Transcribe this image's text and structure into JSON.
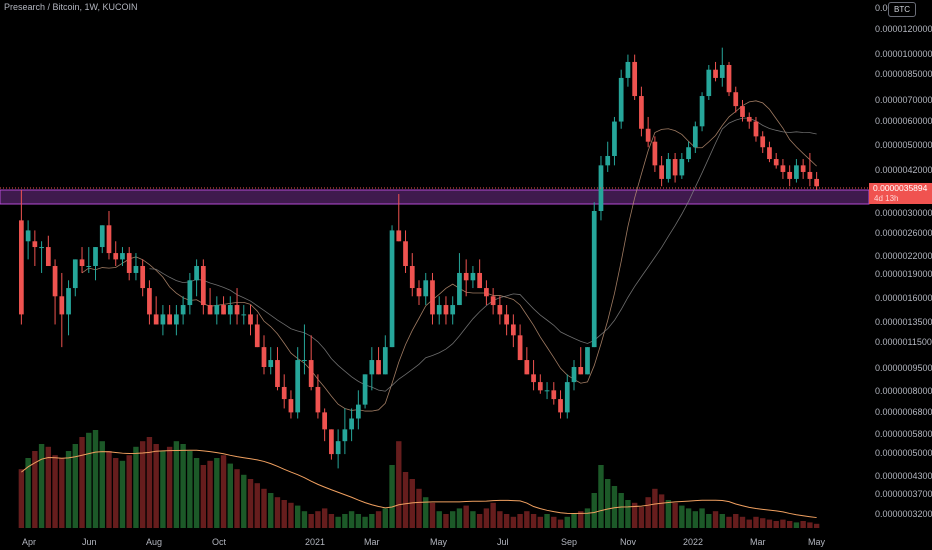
{
  "header": {
    "symbol_title": "Presearch / Bitcoin, 1W, KUCOIN",
    "currency_badge": "BTC"
  },
  "last_price": {
    "value_label": "0.0000035894",
    "countdown": "4d 13h"
  },
  "colors": {
    "up": "#26a69a",
    "down": "#ef5350",
    "zone_fill": "#4a1f5a",
    "zone_border": "#b34bd3",
    "ma_fast": "#c89a7a",
    "ma_slow": "#8a8a8a",
    "volume_ma": "#f0a060"
  },
  "chart_data": {
    "type": "candlestick",
    "y_scale": "log",
    "y_axis_ticks": [
      "0.00",
      "0.0000120000",
      "0.0000100000",
      "0.0000085000",
      "0.0000070000",
      "0.0000060000",
      "0.0000050000",
      "0.0000042000",
      "0.0000030000",
      "0.0000026000",
      "0.0000022000",
      "0.0000019000",
      "0.0000016000",
      "0.0000013500",
      "0.0000011500",
      "0.0000009500",
      "0.0000008000",
      "0.0000006800",
      "0.0000005800",
      "0.0000005000",
      "0.0000004300",
      "0.0000003700",
      "0.0000003200"
    ],
    "x_axis_ticks": [
      "Apr",
      "Jun",
      "Aug",
      "Oct",
      "2021",
      "Mar",
      "May",
      "Jul",
      "Sep",
      "Nov",
      "2022",
      "Mar",
      "May"
    ],
    "support_zone": [
      3.1e-06,
      3.6e-06
    ],
    "candles": [
      [
        2.8e-06,
        3.5e-06,
        1.3e-06,
        1.4e-06
      ],
      [
        2.4e-06,
        2.8e-06,
        2.1e-06,
        2.6e-06
      ],
      [
        2.4e-06,
        2.6e-06,
        2e-06,
        2.3e-06
      ],
      [
        2.3e-06,
        2.4e-06,
        1.9e-06,
        2.3e-06
      ],
      [
        2.3e-06,
        2.5e-06,
        2e-06,
        2e-06
      ],
      [
        2e-06,
        2.1e-06,
        1.3e-06,
        1.6e-06
      ],
      [
        1.6e-06,
        1.9e-06,
        1.1e-06,
        1.4e-06
      ],
      [
        1.4e-06,
        1.8e-06,
        1.2e-06,
        1.7e-06
      ],
      [
        1.7e-06,
        2.1e-06,
        1.6e-06,
        2.1e-06
      ],
      [
        2.1e-06,
        2.3e-06,
        1.9e-06,
        2e-06
      ],
      [
        2e-06,
        2.3e-06,
        1.9e-06,
        2e-06
      ],
      [
        2e-06,
        2.3e-06,
        1.8e-06,
        2.3e-06
      ],
      [
        2.3e-06,
        2.7e-06,
        2.2e-06,
        2.7e-06
      ],
      [
        2.7e-06,
        3e-06,
        2.1e-06,
        2.2e-06
      ],
      [
        2.2e-06,
        2.4e-06,
        2e-06,
        2.1e-06
      ],
      [
        2.1e-06,
        2.3e-06,
        2e-06,
        2.2e-06
      ],
      [
        2.2e-06,
        2.3e-06,
        1.8e-06,
        1.9e-06
      ],
      [
        1.9e-06,
        2.2e-06,
        1.8e-06,
        2e-06
      ],
      [
        2e-06,
        2.1e-06,
        1.6e-06,
        1.7e-06
      ],
      [
        1.7e-06,
        1.8e-06,
        1.3e-06,
        1.4e-06
      ],
      [
        1.4e-06,
        1.6e-06,
        1.3e-06,
        1.3e-06
      ],
      [
        1.3e-06,
        1.5e-06,
        1.2e-06,
        1.4e-06
      ],
      [
        1.4e-06,
        1.5e-06,
        1.3e-06,
        1.3e-06
      ],
      [
        1.3e-06,
        1.5e-06,
        1.2e-06,
        1.4e-06
      ],
      [
        1.4e-06,
        1.6e-06,
        1.3e-06,
        1.5e-06
      ],
      [
        1.5e-06,
        1.9e-06,
        1.4e-06,
        1.8e-06
      ],
      [
        1.8e-06,
        2.1e-06,
        1.6e-06,
        2e-06
      ],
      [
        2e-06,
        2.1e-06,
        1.4e-06,
        1.5e-06
      ],
      [
        1.5e-06,
        1.7e-06,
        1.4e-06,
        1.4e-06
      ],
      [
        1.4e-06,
        1.6e-06,
        1.3e-06,
        1.5e-06
      ],
      [
        1.5e-06,
        1.6e-06,
        1.4e-06,
        1.4e-06
      ],
      [
        1.4e-06,
        1.6e-06,
        1.3e-06,
        1.5e-06
      ],
      [
        1.5e-06,
        1.7e-06,
        1.3e-06,
        1.4e-06
      ],
      [
        1.4e-06,
        1.5e-06,
        1.3e-06,
        1.4e-06
      ],
      [
        1.4e-06,
        1.5e-06,
        1.2e-06,
        1.3e-06
      ],
      [
        1.3e-06,
        1.4e-06,
        1.1e-06,
        1.1e-06
      ],
      [
        1.1e-06,
        1.2e-06,
        9e-07,
        9.5e-07
      ],
      [
        9.5e-07,
        1.1e-06,
        9e-07,
        1e-06
      ],
      [
        1e-06,
        1.1e-06,
        8e-07,
        8.2e-07
      ],
      [
        8.2e-07,
        9e-07,
        7e-07,
        7.5e-07
      ],
      [
        7.5e-07,
        8e-07,
        6.5e-07,
        6.8e-07
      ],
      [
        6.8e-07,
        1.1e-06,
        6.5e-07,
        1e-06
      ],
      [
        1e-06,
        1.3e-06,
        9e-07,
        1e-06
      ],
      [
        1e-06,
        1.2e-06,
        8e-07,
        8.2e-07
      ],
      [
        8.2e-07,
        9e-07,
        6.5e-07,
        6.8e-07
      ],
      [
        6.8e-07,
        7e-07,
        5.5e-07,
        6e-07
      ],
      [
        6e-07,
        6e-07,
        4.8e-07,
        5e-07
      ],
      [
        5e-07,
        6e-07,
        4.5e-07,
        5.5e-07
      ],
      [
        5.5e-07,
        7e-07,
        5e-07,
        6e-07
      ],
      [
        6e-07,
        7e-07,
        5.5e-07,
        6.5e-07
      ],
      [
        6.5e-07,
        8e-07,
        6e-07,
        7.2e-07
      ],
      [
        7.2e-07,
        9e-07,
        7e-07,
        9e-07
      ],
      [
        9e-07,
        1.1e-06,
        8e-07,
        1e-06
      ],
      [
        1e-06,
        1.1e-06,
        9e-07,
        9e-07
      ],
      [
        9e-07,
        1.2e-06,
        9e-07,
        1.1e-06
      ],
      [
        1.1e-06,
        2.7e-06,
        1.1e-06,
        2.6e-06
      ],
      [
        2.6e-06,
        3.4e-06,
        2.4e-06,
        2.4e-06
      ],
      [
        2.4e-06,
        2.6e-06,
        1.9e-06,
        2e-06
      ],
      [
        2e-06,
        2.2e-06,
        1.6e-06,
        1.7e-06
      ],
      [
        1.7e-06,
        1.8e-06,
        1.5e-06,
        1.6e-06
      ],
      [
        1.6e-06,
        1.9e-06,
        1.5e-06,
        1.8e-06
      ],
      [
        1.8e-06,
        1.9e-06,
        1.3e-06,
        1.4e-06
      ],
      [
        1.4e-06,
        1.6e-06,
        1.3e-06,
        1.5e-06
      ],
      [
        1.5e-06,
        1.6e-06,
        1.3e-06,
        1.4e-06
      ],
      [
        1.4e-06,
        1.6e-06,
        1.3e-06,
        1.5e-06
      ],
      [
        1.5e-06,
        2.2e-06,
        1.5e-06,
        1.9e-06
      ],
      [
        1.9e-06,
        2.1e-06,
        1.6e-06,
        1.8e-06
      ],
      [
        1.8e-06,
        2e-06,
        1.7e-06,
        1.9e-06
      ],
      [
        1.9e-06,
        2.1e-06,
        1.7e-06,
        1.7e-06
      ],
      [
        1.7e-06,
        1.8e-06,
        1.5e-06,
        1.6e-06
      ],
      [
        1.6e-06,
        1.7e-06,
        1.4e-06,
        1.5e-06
      ],
      [
        1.5e-06,
        1.6e-06,
        1.3e-06,
        1.4e-06
      ],
      [
        1.4e-06,
        1.5e-06,
        1.2e-06,
        1.3e-06
      ],
      [
        1.3e-06,
        1.4e-06,
        1.1e-06,
        1.2e-06
      ],
      [
        1.2e-06,
        1.3e-06,
        1e-06,
        1e-06
      ],
      [
        1e-06,
        1.1e-06,
        9e-07,
        9e-07
      ],
      [
        9e-07,
        1e-06,
        8e-07,
        8.5e-07
      ],
      [
        8.5e-07,
        9e-07,
        7.8e-07,
        8e-07
      ],
      [
        8e-07,
        8.5e-07,
        7.5e-07,
        8e-07
      ],
      [
        8e-07,
        8.5e-07,
        7.2e-07,
        7.5e-07
      ],
      [
        7.5e-07,
        8e-07,
        6.5e-07,
        6.8e-07
      ],
      [
        6.8e-07,
        9e-07,
        6.5e-07,
        8.5e-07
      ],
      [
        8.5e-07,
        1e-06,
        8e-07,
        9.5e-07
      ],
      [
        9.5e-07,
        1.1e-06,
        9e-07,
        9e-07
      ],
      [
        9e-07,
        1.1e-06,
        9e-07,
        1.1e-06
      ],
      [
        1.1e-06,
        3.2e-06,
        1.1e-06,
        3e-06
      ],
      [
        3e-06,
        4.5e-06,
        2.8e-06,
        4.2e-06
      ],
      [
        4.2e-06,
        5e-06,
        4e-06,
        4.5e-06
      ],
      [
        4.5e-06,
        6e-06,
        4.2e-06,
        5.8e-06
      ],
      [
        5.8e-06,
        8.5e-06,
        5.5e-06,
        8e-06
      ],
      [
        8e-06,
        9.5e-06,
        7.5e-06,
        9e-06
      ],
      [
        9e-06,
        9.5e-06,
        6.8e-06,
        7e-06
      ],
      [
        7e-06,
        7.5e-06,
        5.2e-06,
        5.5e-06
      ],
      [
        5.5e-06,
        6e-06,
        4.8e-06,
        5e-06
      ],
      [
        5e-06,
        5.2e-06,
        4e-06,
        4.2e-06
      ],
      [
        4.2e-06,
        4.5e-06,
        3.6e-06,
        3.8e-06
      ],
      [
        3.8e-06,
        4.6e-06,
        3.7e-06,
        4.4e-06
      ],
      [
        4.4e-06,
        4.6e-06,
        3.7e-06,
        3.9e-06
      ],
      [
        3.9e-06,
        4.6e-06,
        3.8e-06,
        4.4e-06
      ],
      [
        4.4e-06,
        5e-06,
        4.3e-06,
        4.8e-06
      ],
      [
        4.8e-06,
        5.8e-06,
        4.6e-06,
        5.6e-06
      ],
      [
        5.6e-06,
        7.2e-06,
        5.4e-06,
        7e-06
      ],
      [
        7e-06,
        8.8e-06,
        6.8e-06,
        8.5e-06
      ],
      [
        8.5e-06,
        9e-06,
        7.8e-06,
        8e-06
      ],
      [
        8e-06,
        1e-05,
        7.5e-06,
        8.8e-06
      ],
      [
        8.8e-06,
        9e-06,
        7e-06,
        7.2e-06
      ],
      [
        7.2e-06,
        7.5e-06,
        6.2e-06,
        6.5e-06
      ],
      [
        6.5e-06,
        6.8e-06,
        5.8e-06,
        6e-06
      ],
      [
        6e-06,
        6.2e-06,
        5.5e-06,
        5.8e-06
      ],
      [
        5.8e-06,
        6e-06,
        5e-06,
        5.2e-06
      ],
      [
        5.2e-06,
        5.4e-06,
        4.6e-06,
        4.8e-06
      ],
      [
        4.8e-06,
        5e-06,
        4.3e-06,
        4.4e-06
      ],
      [
        4.4e-06,
        4.6e-06,
        4.1e-06,
        4.2e-06
      ],
      [
        4.2e-06,
        4.4e-06,
        3.8e-06,
        4e-06
      ],
      [
        4e-06,
        4.2e-06,
        3.6e-06,
        3.8e-06
      ],
      [
        3.8e-06,
        4.4e-06,
        3.7e-06,
        4.2e-06
      ],
      [
        4.2e-06,
        4.4e-06,
        3.8e-06,
        4e-06
      ],
      [
        4e-06,
        4.6e-06,
        3.6e-06,
        3.8e-06
      ],
      [
        3.8e-06,
        4e-06,
        3.5e-06,
        3.6e-06
      ]
    ],
    "volume": [
      0.42,
      0.5,
      0.55,
      0.6,
      0.58,
      0.52,
      0.5,
      0.55,
      0.6,
      0.65,
      0.68,
      0.7,
      0.62,
      0.55,
      0.5,
      0.48,
      0.52,
      0.58,
      0.62,
      0.65,
      0.6,
      0.55,
      0.58,
      0.62,
      0.6,
      0.55,
      0.5,
      0.45,
      0.48,
      0.5,
      0.52,
      0.46,
      0.42,
      0.38,
      0.35,
      0.32,
      0.28,
      0.25,
      0.22,
      0.2,
      0.18,
      0.16,
      0.12,
      0.1,
      0.12,
      0.14,
      0.1,
      0.08,
      0.1,
      0.12,
      0.1,
      0.08,
      0.1,
      0.12,
      0.14,
      0.45,
      0.62,
      0.4,
      0.35,
      0.28,
      0.22,
      0.18,
      0.12,
      0.1,
      0.12,
      0.14,
      0.16,
      0.12,
      0.1,
      0.14,
      0.18,
      0.12,
      0.1,
      0.08,
      0.1,
      0.12,
      0.1,
      0.08,
      0.1,
      0.08,
      0.06,
      0.08,
      0.1,
      0.12,
      0.14,
      0.25,
      0.45,
      0.35,
      0.3,
      0.25,
      0.2,
      0.18,
      0.15,
      0.22,
      0.28,
      0.24,
      0.2,
      0.18,
      0.16,
      0.14,
      0.12,
      0.14,
      0.1,
      0.12,
      0.1,
      0.08,
      0.1,
      0.08,
      0.06,
      0.08,
      0.07,
      0.06,
      0.05,
      0.06,
      0.05,
      0.04,
      0.05,
      0.04,
      0.03
    ]
  }
}
